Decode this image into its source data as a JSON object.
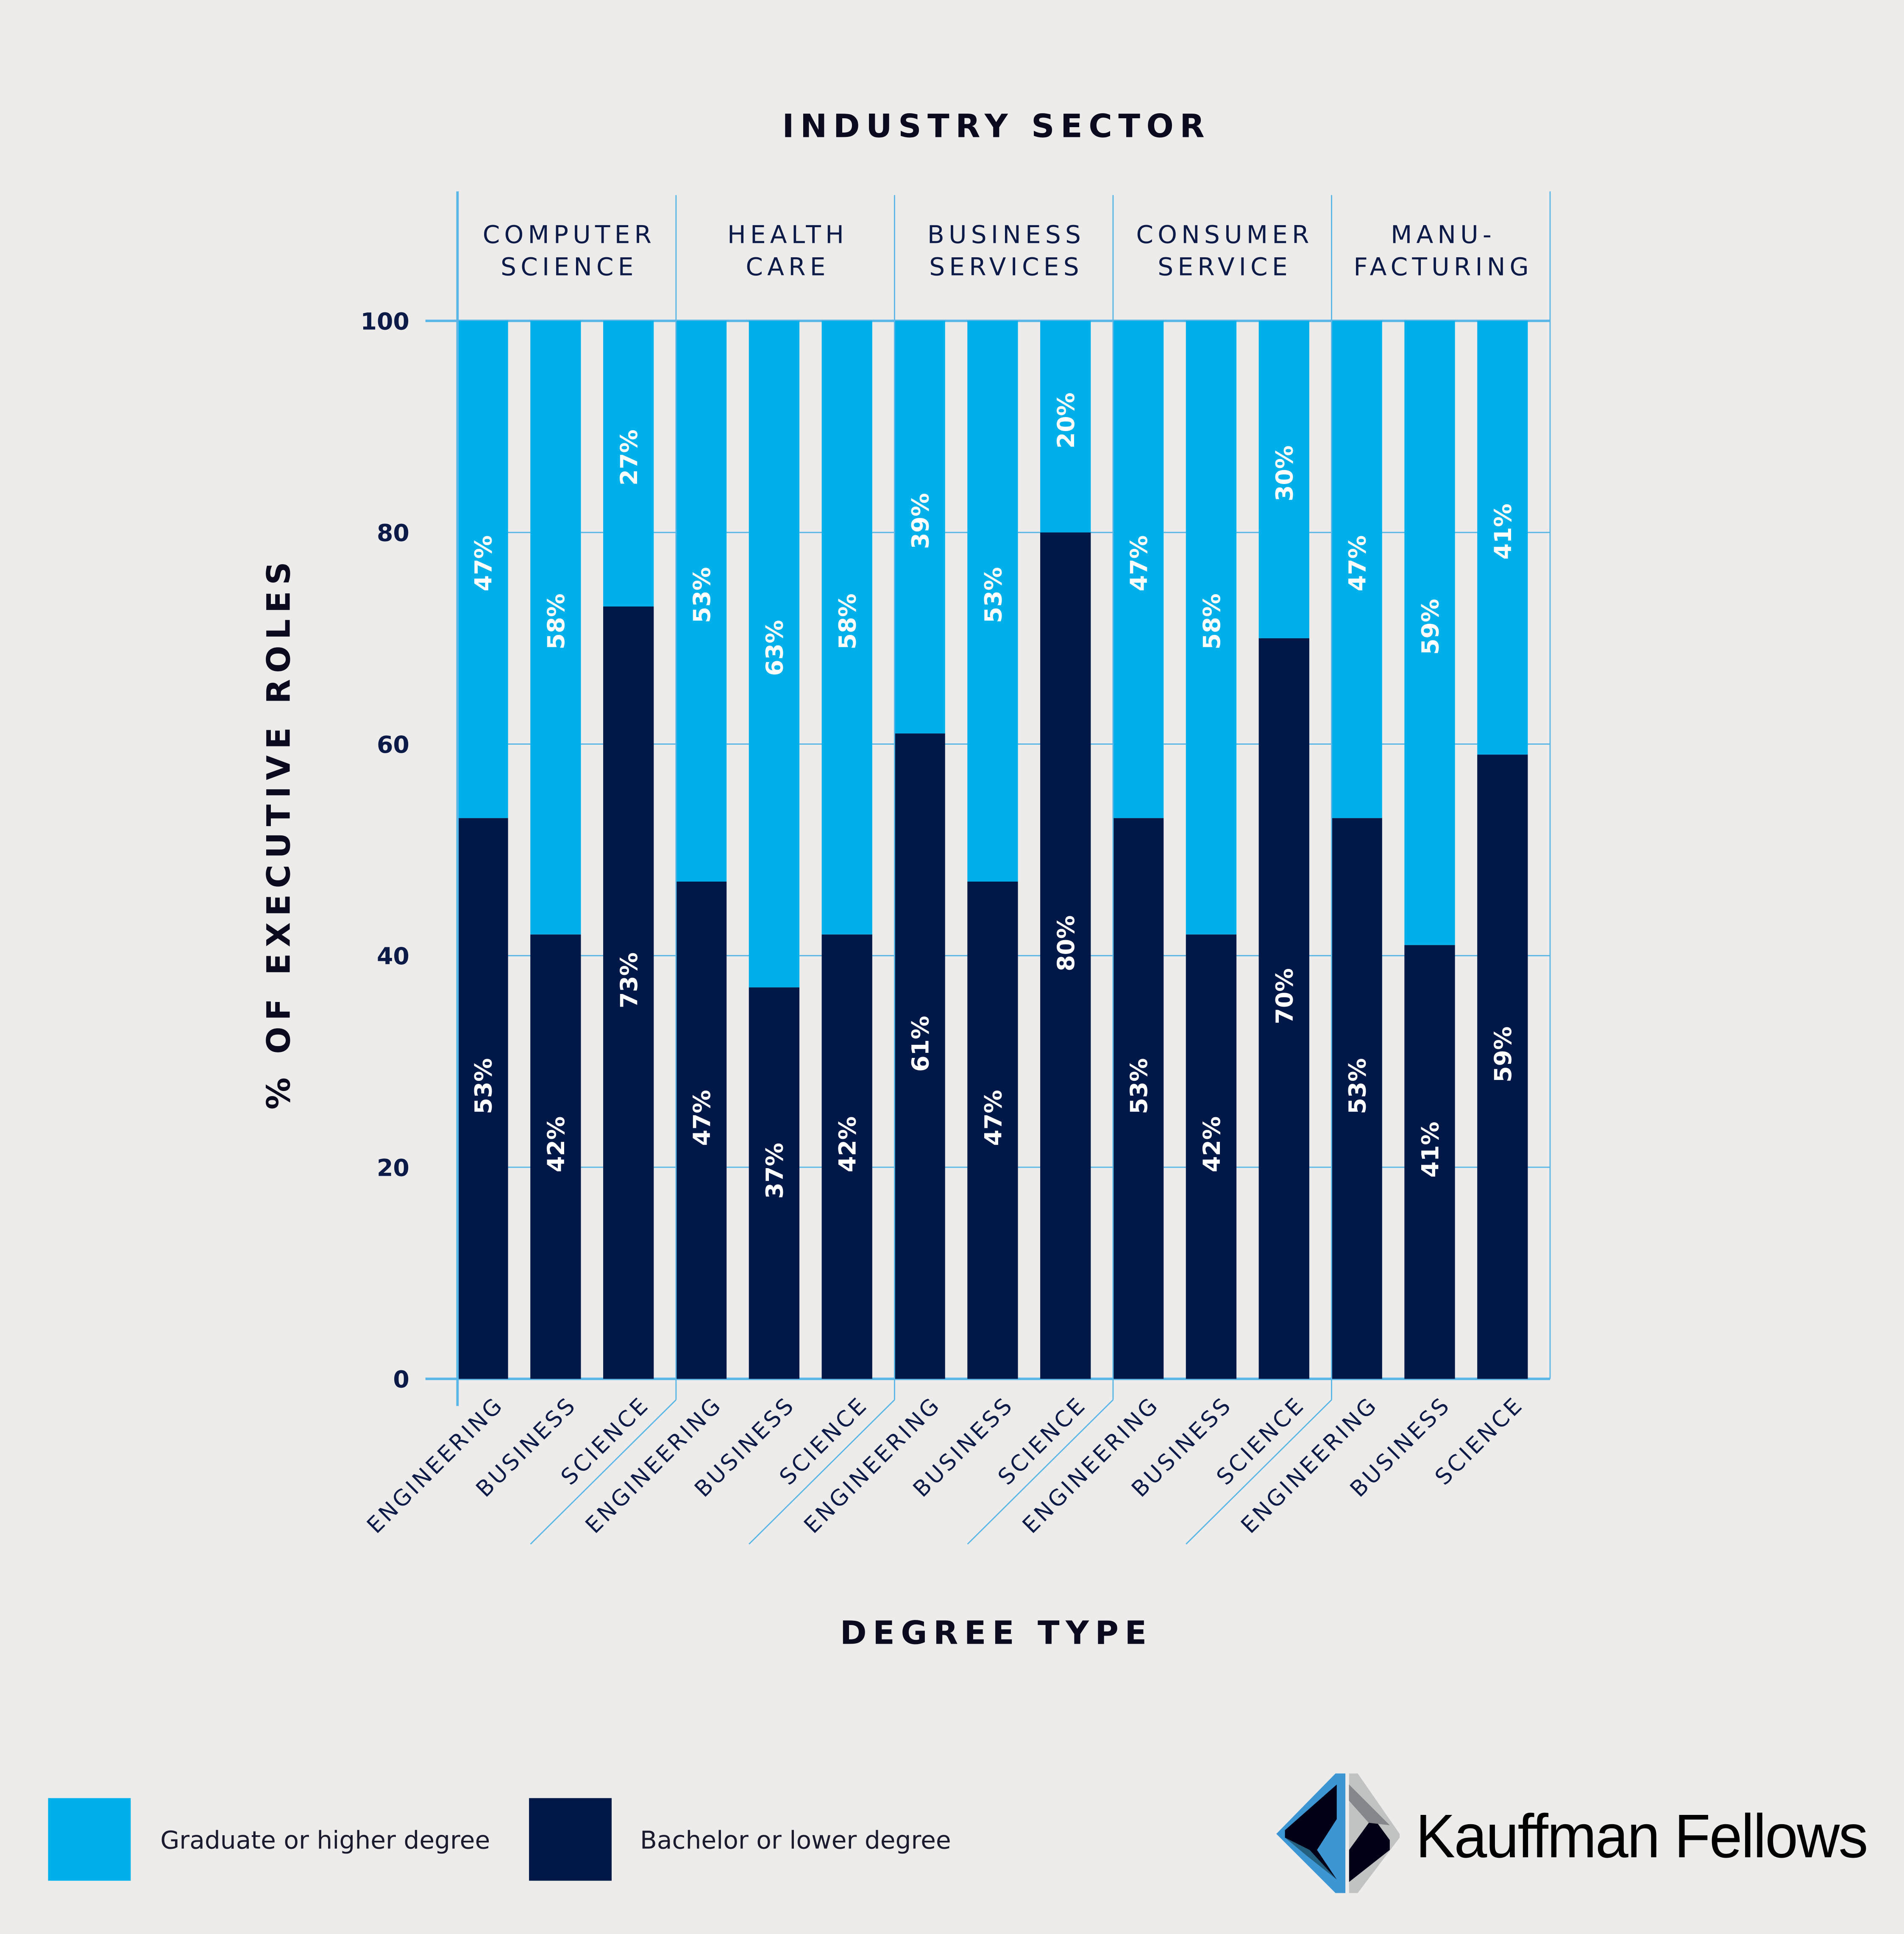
{
  "chart_data": {
    "type": "bar",
    "stacked": true,
    "title": "INDUSTRY SECTOR",
    "xlabel": "DEGREE TYPE",
    "ylabel": "% OF EXECUTIVE ROLES",
    "ylim": [
      0,
      100
    ],
    "yticks": [
      "0",
      "20",
      "40",
      "60",
      "80",
      "100"
    ],
    "grid": true,
    "legend_placement": "bottom-left",
    "groups": [
      {
        "name": "COMPUTER SCIENCE",
        "lines": [
          "COMPUTER",
          "SCIENCE"
        ]
      },
      {
        "name": "HEALTH CARE",
        "lines": [
          "HEALTH",
          "CARE"
        ]
      },
      {
        "name": "BUSINESS SERVICES",
        "lines": [
          "BUSINESS",
          "SERVICES"
        ]
      },
      {
        "name": "CONSUMER SERVICE",
        "lines": [
          "CONSUMER",
          "SERVICE"
        ]
      },
      {
        "name": "MANUFACTURING",
        "lines": [
          "MANU-",
          "FACTURING"
        ]
      }
    ],
    "categories": [
      "ENGINEERING",
      "BUSINESS",
      "SCIENCE"
    ],
    "series": [
      {
        "name": "Bachelor or lower degree",
        "color": "#001847",
        "values": [
          [
            53,
            42,
            73
          ],
          [
            47,
            37,
            42
          ],
          [
            61,
            47,
            80
          ],
          [
            53,
            42,
            70
          ],
          [
            53,
            41,
            59
          ]
        ]
      },
      {
        "name": "Graduate or higher degree",
        "color": "#00b0ea",
        "values": [
          [
            47,
            58,
            27
          ],
          [
            53,
            63,
            58
          ],
          [
            39,
            53,
            20
          ],
          [
            47,
            58,
            30
          ],
          [
            47,
            59,
            41
          ]
        ]
      }
    ]
  },
  "legend": [
    {
      "label": "Graduate or higher degree",
      "color": "#00b0ea"
    },
    {
      "label": "Bachelor or lower degree",
      "color": "#001847"
    }
  ],
  "logo": {
    "text": "Kauffman Fellows",
    "icon": "kauffman-hexagon-logo"
  },
  "colors": {
    "background": "#edecea",
    "grid": "#5ab6e6",
    "text": "#0c1a48"
  }
}
